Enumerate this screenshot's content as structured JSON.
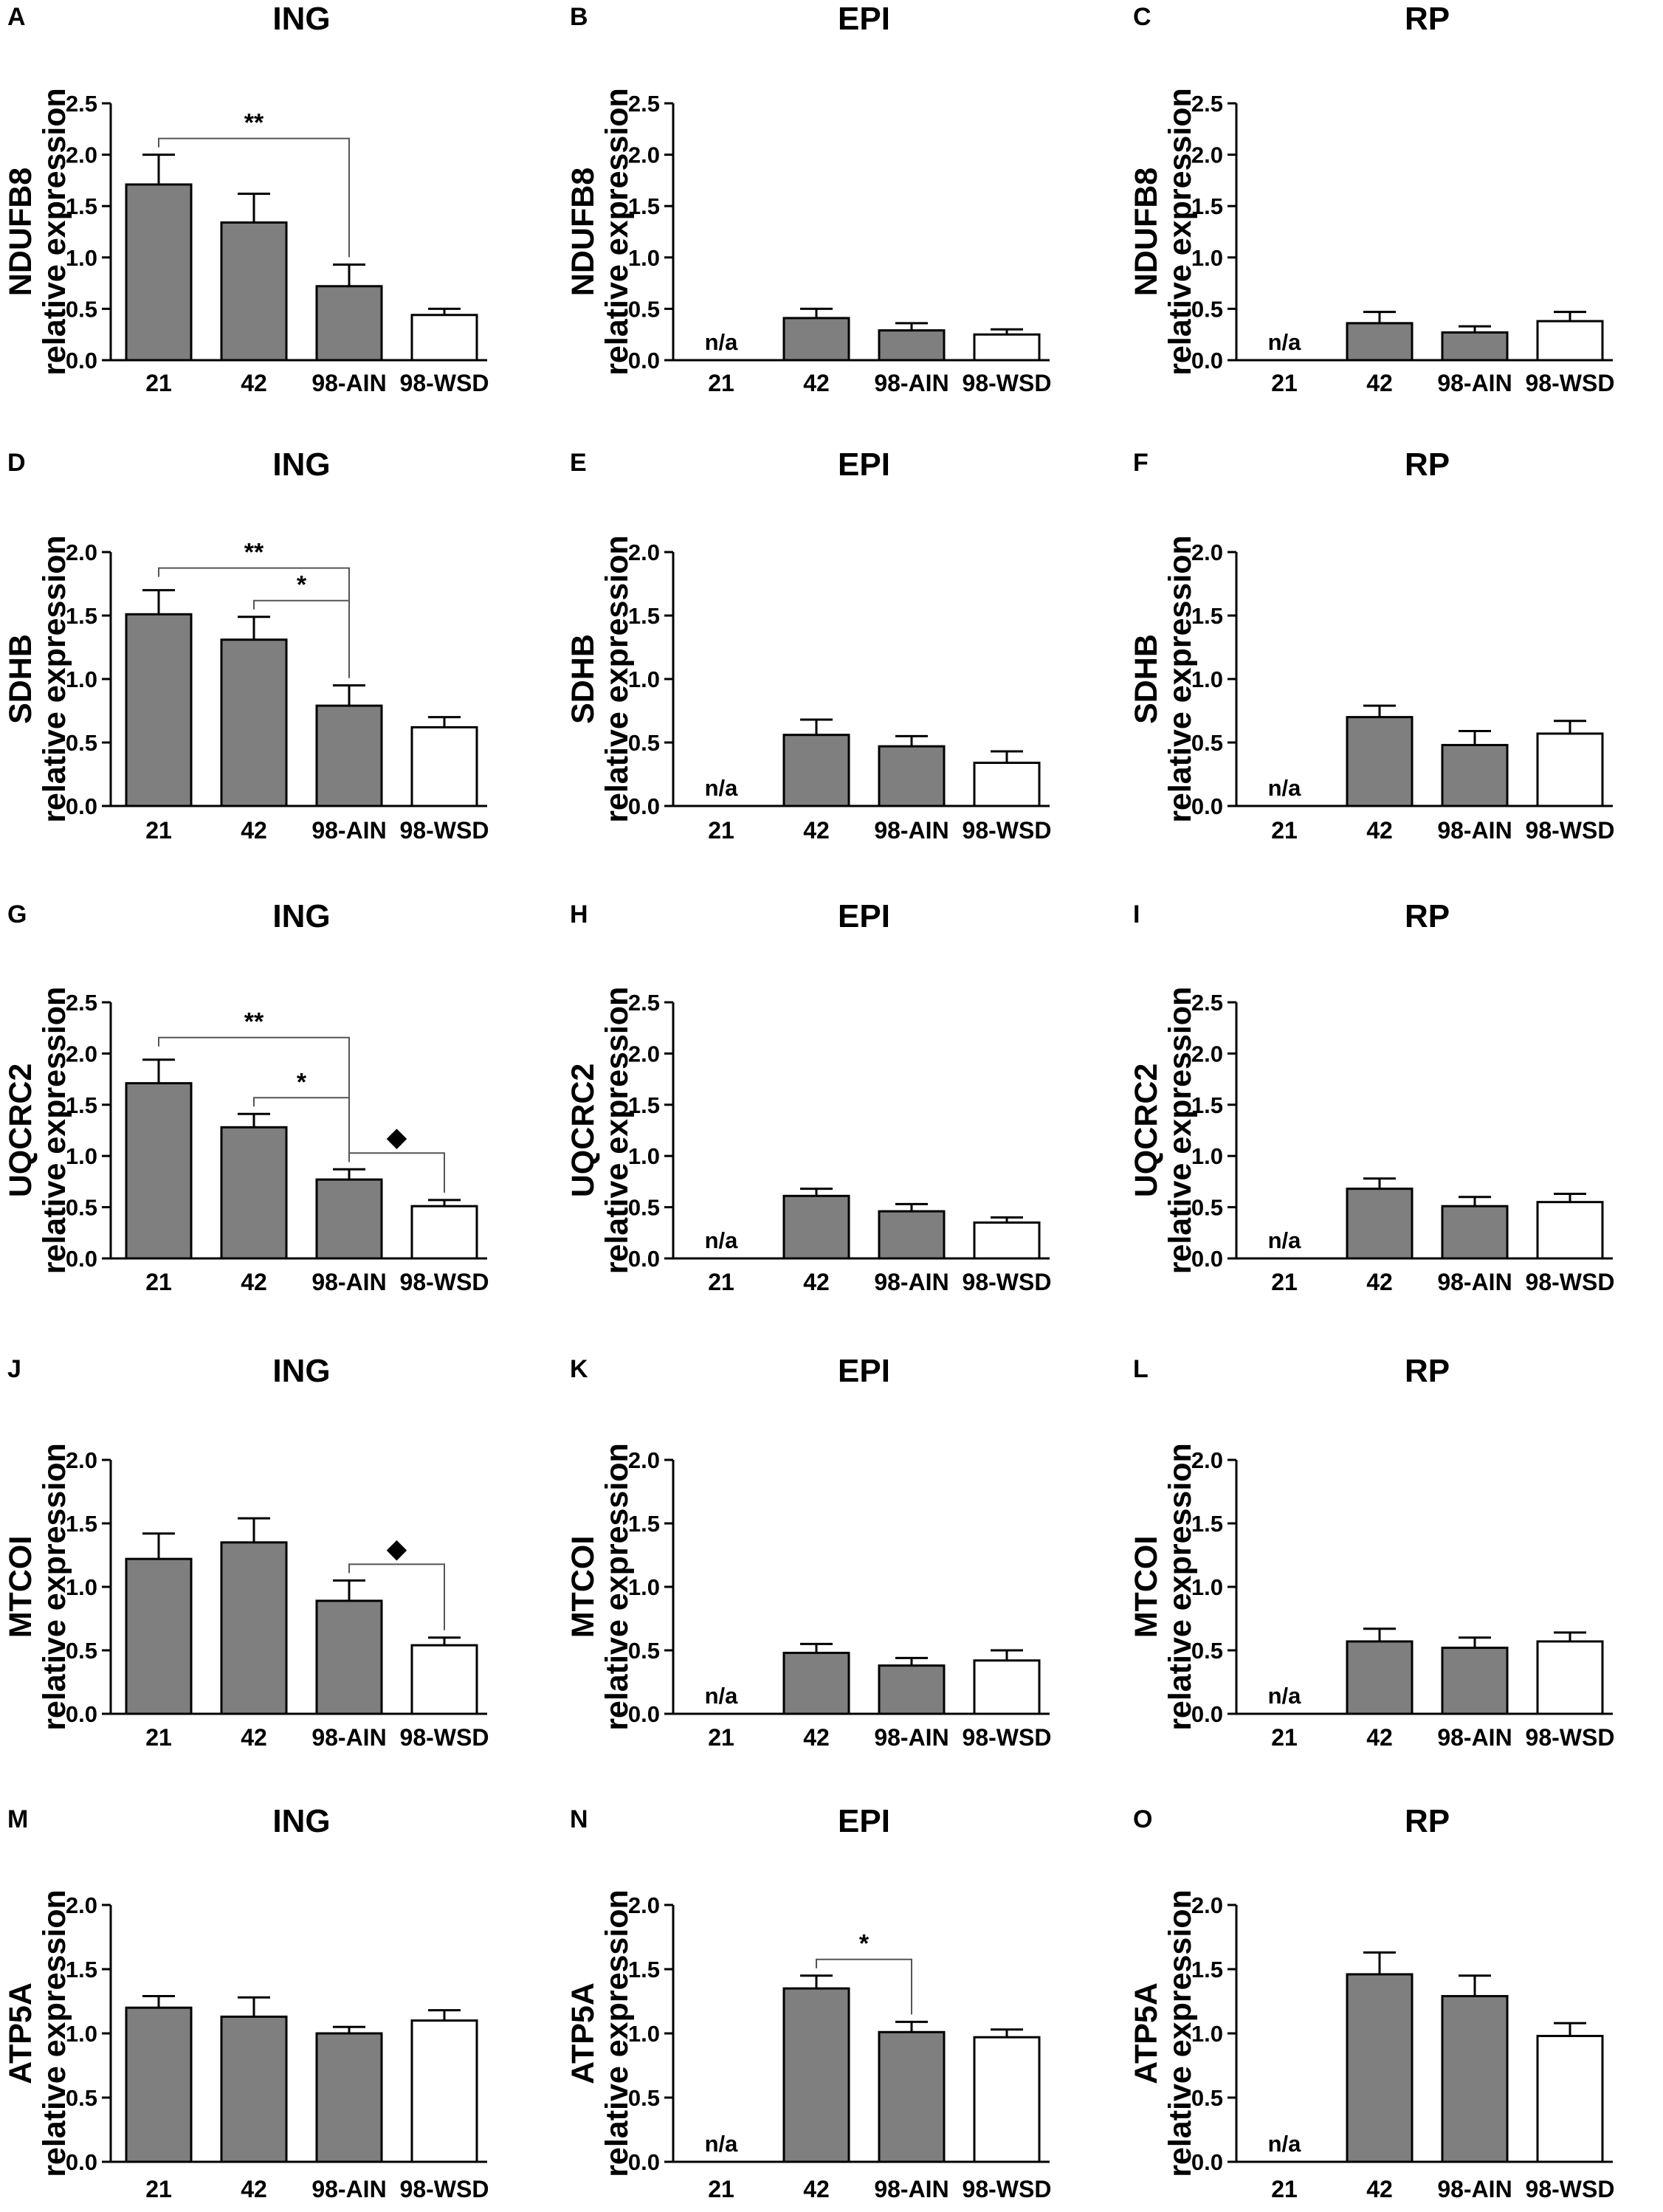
{
  "colors": {
    "ain_bar": "#7f7f7f",
    "wsd_bar": "#ffffff",
    "axis": "#000000",
    "bracket": "#555555"
  },
  "common": {
    "ylabel_secondary": "relative expression",
    "categories": [
      "21",
      "42",
      "98-AIN",
      "98-WSD"
    ],
    "na_label": "n/a",
    "bar_colors_by_category": [
      "ain_bar",
      "ain_bar",
      "ain_bar",
      "wsd_bar"
    ]
  },
  "chart_data": [
    {
      "panel": "A",
      "type": "bar",
      "title": "ING",
      "ylabel": "NDUFB8",
      "xlabel": "",
      "ylim": [
        0,
        2.5
      ],
      "yticks": [
        "0.0",
        "0.5",
        "1.0",
        "1.5",
        "2.0",
        "2.5"
      ],
      "values": [
        1.71,
        1.34,
        0.72,
        0.44
      ],
      "errors": [
        0.29,
        0.28,
        0.21,
        0.06
      ],
      "na": [
        false,
        false,
        false,
        false
      ],
      "significance": [
        {
          "from": 0,
          "to": 2,
          "label": "**"
        }
      ]
    },
    {
      "panel": "B",
      "type": "bar",
      "title": "EPI",
      "ylabel": "NDUFB8",
      "xlabel": "",
      "ylim": [
        0,
        2.5
      ],
      "yticks": [
        "0.0",
        "0.5",
        "1.0",
        "1.5",
        "2.0",
        "2.5"
      ],
      "values": [
        0,
        0.41,
        0.29,
        0.25
      ],
      "errors": [
        0,
        0.09,
        0.07,
        0.05
      ],
      "na": [
        true,
        false,
        false,
        false
      ],
      "significance": []
    },
    {
      "panel": "C",
      "type": "bar",
      "title": "RP",
      "ylabel": "NDUFB8",
      "xlabel": "",
      "ylim": [
        0,
        2.5
      ],
      "yticks": [
        "0.0",
        "0.5",
        "1.0",
        "1.5",
        "2.0",
        "2.5"
      ],
      "values": [
        0,
        0.36,
        0.27,
        0.38
      ],
      "errors": [
        0,
        0.11,
        0.06,
        0.09
      ],
      "na": [
        true,
        false,
        false,
        false
      ],
      "significance": []
    },
    {
      "panel": "D",
      "type": "bar",
      "title": "ING",
      "ylabel": "SDHB",
      "xlabel": "",
      "ylim": [
        0,
        2.0
      ],
      "yticks": [
        "0.0",
        "0.5",
        "1.0",
        "1.5",
        "2.0"
      ],
      "values": [
        1.51,
        1.31,
        0.79,
        0.62
      ],
      "errors": [
        0.19,
        0.18,
        0.16,
        0.08
      ],
      "na": [
        false,
        false,
        false,
        false
      ],
      "significance": [
        {
          "from": 0,
          "to": 2,
          "label": "**"
        },
        {
          "from": 1,
          "to": 2,
          "label": "*"
        }
      ]
    },
    {
      "panel": "E",
      "type": "bar",
      "title": "EPI",
      "ylabel": "SDHB",
      "xlabel": "",
      "ylim": [
        0,
        2.0
      ],
      "yticks": [
        "0.0",
        "0.5",
        "1.0",
        "1.5",
        "2.0"
      ],
      "values": [
        0,
        0.56,
        0.47,
        0.34
      ],
      "errors": [
        0,
        0.12,
        0.08,
        0.09
      ],
      "na": [
        true,
        false,
        false,
        false
      ],
      "significance": []
    },
    {
      "panel": "F",
      "type": "bar",
      "title": "RP",
      "ylabel": "SDHB",
      "xlabel": "",
      "ylim": [
        0,
        2.0
      ],
      "yticks": [
        "0.0",
        "0.5",
        "1.0",
        "1.5",
        "2.0"
      ],
      "values": [
        0,
        0.7,
        0.48,
        0.57
      ],
      "errors": [
        0,
        0.09,
        0.11,
        0.1
      ],
      "na": [
        true,
        false,
        false,
        false
      ],
      "significance": []
    },
    {
      "panel": "G",
      "type": "bar",
      "title": "ING",
      "ylabel": "UQCRC2",
      "xlabel": "",
      "ylim": [
        0,
        2.5
      ],
      "yticks": [
        "0.0",
        "0.5",
        "1.0",
        "1.5",
        "2.0",
        "2.5"
      ],
      "values": [
        1.71,
        1.28,
        0.77,
        0.51
      ],
      "errors": [
        0.23,
        0.13,
        0.1,
        0.06
      ],
      "na": [
        false,
        false,
        false,
        false
      ],
      "significance": [
        {
          "from": 0,
          "to": 2,
          "label": "**"
        },
        {
          "from": 1,
          "to": 2,
          "label": "*"
        },
        {
          "from": 2,
          "to": 3,
          "label": "◆"
        }
      ]
    },
    {
      "panel": "H",
      "type": "bar",
      "title": "EPI",
      "ylabel": "UQCRC2",
      "xlabel": "",
      "ylim": [
        0,
        2.5
      ],
      "yticks": [
        "0.0",
        "0.5",
        "1.0",
        "1.5",
        "2.0",
        "2.5"
      ],
      "values": [
        0,
        0.61,
        0.46,
        0.35
      ],
      "errors": [
        0,
        0.07,
        0.07,
        0.05
      ],
      "na": [
        true,
        false,
        false,
        false
      ],
      "significance": []
    },
    {
      "panel": "I",
      "type": "bar",
      "title": "RP",
      "ylabel": "UQCRC2",
      "xlabel": "",
      "ylim": [
        0,
        2.5
      ],
      "yticks": [
        "0.0",
        "0.5",
        "1.0",
        "1.5",
        "2.0",
        "2.5"
      ],
      "values": [
        0,
        0.68,
        0.51,
        0.55
      ],
      "errors": [
        0,
        0.1,
        0.09,
        0.08
      ],
      "na": [
        true,
        false,
        false,
        false
      ],
      "significance": []
    },
    {
      "panel": "J",
      "type": "bar",
      "title": "ING",
      "ylabel": "MTCOI",
      "xlabel": "",
      "ylim": [
        0,
        2.0
      ],
      "yticks": [
        "0.0",
        "0.5",
        "1.0",
        "1.5",
        "2.0"
      ],
      "values": [
        1.22,
        1.35,
        0.89,
        0.54
      ],
      "errors": [
        0.2,
        0.19,
        0.16,
        0.06
      ],
      "na": [
        false,
        false,
        false,
        false
      ],
      "significance": [
        {
          "from": 2,
          "to": 3,
          "label": "◆"
        }
      ]
    },
    {
      "panel": "K",
      "type": "bar",
      "title": "EPI",
      "ylabel": "MTCOI",
      "xlabel": "",
      "ylim": [
        0,
        2.0
      ],
      "yticks": [
        "0.0",
        "0.5",
        "1.0",
        "1.5",
        "2.0"
      ],
      "values": [
        0,
        0.48,
        0.38,
        0.42
      ],
      "errors": [
        0,
        0.07,
        0.06,
        0.08
      ],
      "na": [
        true,
        false,
        false,
        false
      ],
      "significance": []
    },
    {
      "panel": "L",
      "type": "bar",
      "title": "RP",
      "ylabel": "MTCOI",
      "xlabel": "",
      "ylim": [
        0,
        2.0
      ],
      "yticks": [
        "0.0",
        "0.5",
        "1.0",
        "1.5",
        "2.0"
      ],
      "values": [
        0,
        0.57,
        0.52,
        0.57
      ],
      "errors": [
        0,
        0.1,
        0.08,
        0.07
      ],
      "na": [
        true,
        false,
        false,
        false
      ],
      "significance": []
    },
    {
      "panel": "M",
      "type": "bar",
      "title": "ING",
      "ylabel": "ATP5A",
      "xlabel": "",
      "ylim": [
        0,
        2.0
      ],
      "yticks": [
        "0.0",
        "0.5",
        "1.0",
        "1.5",
        "2.0"
      ],
      "values": [
        1.2,
        1.13,
        1.0,
        1.1
      ],
      "errors": [
        0.09,
        0.15,
        0.05,
        0.08
      ],
      "na": [
        false,
        false,
        false,
        false
      ],
      "significance": []
    },
    {
      "panel": "N",
      "type": "bar",
      "title": "EPI",
      "ylabel": "ATP5A",
      "xlabel": "",
      "ylim": [
        0,
        2.0
      ],
      "yticks": [
        "0.0",
        "0.5",
        "1.0",
        "1.5",
        "2.0"
      ],
      "values": [
        0,
        1.35,
        1.01,
        0.97
      ],
      "errors": [
        0,
        0.1,
        0.08,
        0.06
      ],
      "na": [
        true,
        false,
        false,
        false
      ],
      "significance": [
        {
          "from": 1,
          "to": 2,
          "label": "*"
        }
      ]
    },
    {
      "panel": "O",
      "type": "bar",
      "title": "RP",
      "ylabel": "ATP5A",
      "xlabel": "",
      "ylim": [
        0,
        2.0
      ],
      "yticks": [
        "0.0",
        "0.5",
        "1.0",
        "1.5",
        "2.0"
      ],
      "values": [
        0,
        1.46,
        1.29,
        0.98
      ],
      "errors": [
        0,
        0.17,
        0.16,
        0.1
      ],
      "na": [
        true,
        false,
        false,
        false
      ],
      "significance": []
    }
  ]
}
